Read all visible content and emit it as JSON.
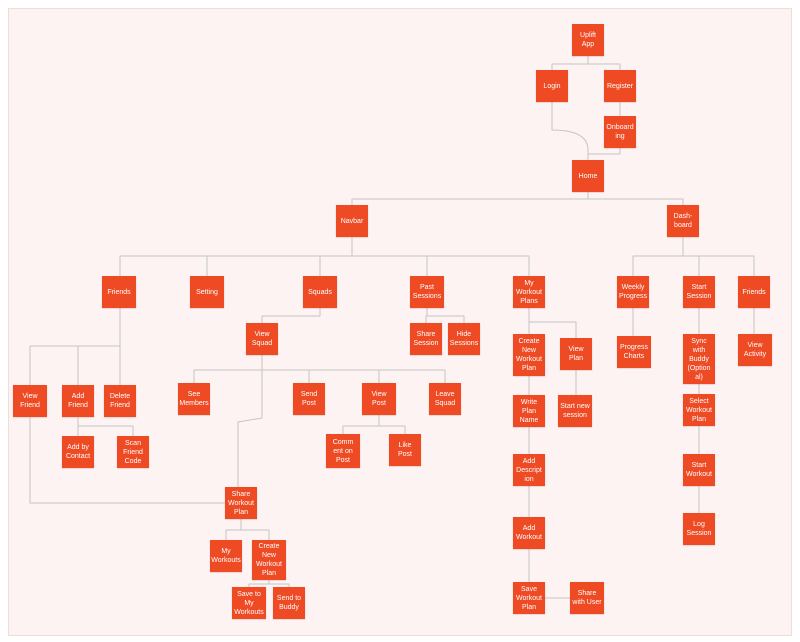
{
  "theme": {
    "node_color": "#ee4a24",
    "edge_color": "#c4c4c4",
    "background": "#fdf3f2"
  },
  "nodes": {
    "uplift": "Uplift\nApp",
    "login": "Login",
    "register": "Register",
    "onboarding": "Onboard\ning",
    "home": "Home",
    "navbar": "Navbar",
    "dashboard": "Dash-\nboard",
    "friends": "Friends",
    "setting": "Setting",
    "squads": "Squads",
    "past_sessions": "Past\nSessions",
    "my_workout_plans": "My\nWorkout\nPlans",
    "weekly_progress": "Weekly\nProgress",
    "start_session": "Start\nSession",
    "dash_friends": "Friends",
    "view_friend": "View\nFriend",
    "add_friend": "Add\nFriend",
    "delete_friend": "Delete\nFriend",
    "add_by_contact": "Add by\nContact",
    "scan_friend_code": "Scan\nFriend\nCode",
    "view_squad": "View\nSquad",
    "see_members": "See\nMembers",
    "send_post": "Send\nPost",
    "view_post": "View\nPost",
    "leave_squad": "Leave\nSquad",
    "comment_on_post": "Comm\nent on\nPost",
    "like_post": "Like Post",
    "share_workout_plan": "Share\nWorkout\nPlan",
    "my_workouts": "My\nWorkouts",
    "create_new_plan_squad": "Create\nNew\nWorkout\nPlan",
    "save_to_my_workouts": "Save to\nMy\nWorkouts",
    "send_to_buddy": "Send to\nBuddy",
    "share_session": "Share\nSession",
    "hide_sessions": "Hide\nSessions",
    "create_new_plan": "Create\nNew\nWorkout\nPlan",
    "view_plan": "View\nPlan",
    "write_plan_name": "Write\nPlan\nName",
    "add_description": "Add\nDescript\nion",
    "add_workout": "Add\nWorkout",
    "save_workout_plan": "Save\nWorkout\nPlan",
    "share_with_user": "Share\nwith User",
    "start_new_session": "Start new\nsession",
    "progress_charts": "Progress\nCharts",
    "sync_with_buddy": "Sync\nwith\nBuddy\n(Option\nal)",
    "select_workout_plan": "Select\nWorkout\nPlan",
    "start_workout": "Start\nWorkout",
    "log_session": "Log\nSession",
    "view_activity": "View\nActivity"
  }
}
